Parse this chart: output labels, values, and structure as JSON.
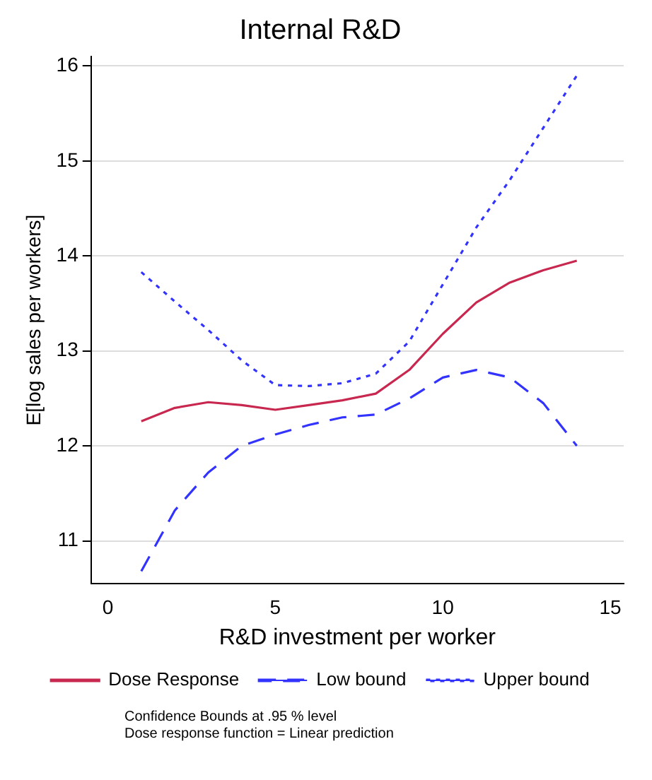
{
  "chart_data": {
    "type": "line",
    "title": "Internal R&D",
    "xlabel": "R&D investment per worker",
    "ylabel": "E[log sales per workers]",
    "x": [
      1,
      2,
      3,
      4,
      5,
      6,
      7,
      8,
      9,
      10,
      11,
      12,
      13,
      14
    ],
    "xlim": [
      -0.5,
      15.4
    ],
    "xticks": [
      0,
      5,
      10,
      15
    ],
    "ylim": [
      10.55,
      16.1
    ],
    "yticks": [
      11,
      12,
      13,
      14,
      15,
      16
    ],
    "grid": "y",
    "legend": "bottom",
    "marker": "none",
    "series": [
      {
        "name": "Dose Response",
        "color": "#c8284f",
        "line_style": "solid",
        "values": [
          12.26,
          12.4,
          12.46,
          12.43,
          12.38,
          12.43,
          12.48,
          12.55,
          12.8,
          13.18,
          13.51,
          13.72,
          13.85,
          13.95
        ]
      },
      {
        "name": "Low bound",
        "color": "#3333ff",
        "line_style": "dashed",
        "values": [
          10.68,
          11.32,
          11.72,
          12.0,
          12.12,
          12.22,
          12.3,
          12.33,
          12.5,
          12.72,
          12.8,
          12.72,
          12.45,
          12.0
        ]
      },
      {
        "name": "Upper bound",
        "color": "#3333ff",
        "line_style": "dotted",
        "values": [
          13.83,
          13.52,
          13.22,
          12.9,
          12.64,
          12.63,
          12.66,
          12.76,
          13.1,
          13.7,
          14.3,
          14.8,
          15.35,
          15.9
        ]
      }
    ],
    "annotations": [
      "Confidence Bounds at .95 % level",
      "Dose response function = Linear prediction"
    ]
  }
}
